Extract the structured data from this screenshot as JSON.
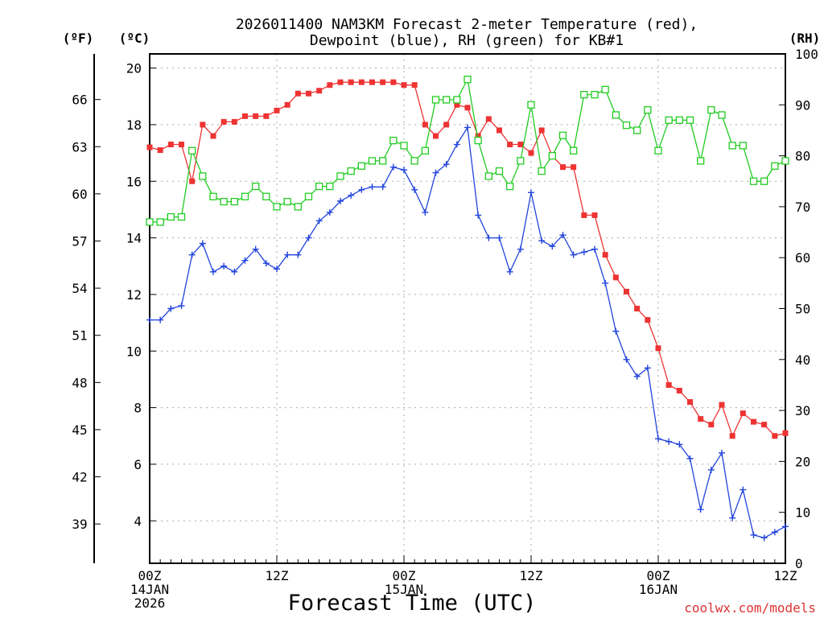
{
  "chart_data": {
    "type": "line",
    "title_line1": "2026011400 NAM3KM Forecast 2-meter Temperature (red),",
    "title_line2": "Dewpoint (blue), RH (green) for KB#1",
    "xlabel": "Forecast Time (UTC)",
    "credit": "coolwx.com/models",
    "unit_f": "(ºF)",
    "unit_c": "(ºC)",
    "unit_rh": "(RH)",
    "x_hours_range": [
      0,
      60
    ],
    "c_range": [
      2.5,
      20.5
    ],
    "rh_range": [
      0,
      100
    ],
    "c_ticks": [
      "4",
      "6",
      "8",
      "10",
      "12",
      "14",
      "16",
      "18",
      "20"
    ],
    "f_ticks": [
      "39",
      "42",
      "45",
      "48",
      "51",
      "54",
      "57",
      "60",
      "63",
      "66"
    ],
    "rh_ticks": [
      "0",
      "10",
      "20",
      "30",
      "40",
      "50",
      "60",
      "70",
      "80",
      "90",
      "100"
    ],
    "x_ticks": [
      {
        "h": 0,
        "l1": "00Z",
        "l2": "14JAN",
        "l3": "2026"
      },
      {
        "h": 12,
        "l1": "12Z",
        "l2": "",
        "l3": ""
      },
      {
        "h": 24,
        "l1": "00Z",
        "l2": "15JAN",
        "l3": ""
      },
      {
        "h": 36,
        "l1": "12Z",
        "l2": "",
        "l3": ""
      },
      {
        "h": 48,
        "l1": "00Z",
        "l2": "16JAN",
        "l3": ""
      },
      {
        "h": 60,
        "l1": "12Z",
        "l2": "",
        "l3": ""
      }
    ],
    "series": [
      {
        "name": "Temperature",
        "unit": "C",
        "color": "#ee3333",
        "marker": "filled-square",
        "values": [
          17.2,
          17.1,
          17.3,
          17.3,
          16.0,
          18.0,
          17.6,
          18.1,
          18.1,
          18.3,
          18.3,
          18.3,
          18.5,
          18.7,
          19.1,
          19.1,
          19.2,
          19.4,
          19.5,
          19.5,
          19.5,
          19.5,
          19.5,
          19.5,
          19.4,
          19.4,
          18.0,
          17.6,
          18.0,
          18.7,
          18.6,
          17.6,
          18.2,
          17.8,
          17.3,
          17.3,
          17.0,
          17.8,
          16.9,
          16.5,
          16.5,
          14.8,
          14.8,
          13.4,
          12.6,
          12.1,
          11.5,
          11.1,
          10.1,
          8.8,
          8.6,
          8.2,
          7.6,
          7.4,
          8.1,
          7.0,
          7.8,
          7.5,
          7.4,
          7.0,
          7.1
        ]
      },
      {
        "name": "Dewpoint",
        "unit": "C",
        "color": "#2244dd",
        "marker": "plus",
        "values": [
          11.1,
          11.1,
          11.5,
          11.6,
          13.4,
          13.8,
          12.8,
          13.0,
          12.8,
          13.2,
          13.6,
          13.1,
          12.9,
          13.4,
          13.4,
          14.0,
          14.6,
          14.9,
          15.3,
          15.5,
          15.7,
          15.8,
          15.8,
          16.5,
          16.4,
          15.7,
          14.9,
          16.3,
          16.6,
          17.3,
          17.9,
          14.8,
          14.0,
          14.0,
          12.8,
          13.6,
          15.6,
          13.9,
          13.7,
          14.1,
          13.4,
          13.5,
          13.6,
          12.4,
          10.7,
          9.7,
          9.1,
          9.4,
          6.9,
          6.8,
          6.7,
          6.2,
          4.4,
          5.8,
          6.4,
          4.1,
          5.1,
          3.5,
          3.4,
          3.6,
          3.8
        ]
      },
      {
        "name": "RH",
        "unit": "%",
        "color": "#22cc22",
        "marker": "open-square",
        "values": [
          67,
          67,
          68,
          68,
          81,
          76,
          72,
          71,
          71,
          72,
          74,
          72,
          70,
          71,
          70,
          72,
          74,
          74,
          76,
          77,
          78,
          79,
          79,
          83,
          82,
          79,
          81,
          91,
          91,
          91,
          95,
          83,
          76,
          77,
          74,
          79,
          90,
          77,
          80,
          84,
          81,
          92,
          92,
          93,
          88,
          86,
          85,
          89,
          81,
          87,
          87,
          87,
          79,
          89,
          88,
          82,
          82,
          75,
          75,
          78,
          79
        ]
      }
    ]
  }
}
